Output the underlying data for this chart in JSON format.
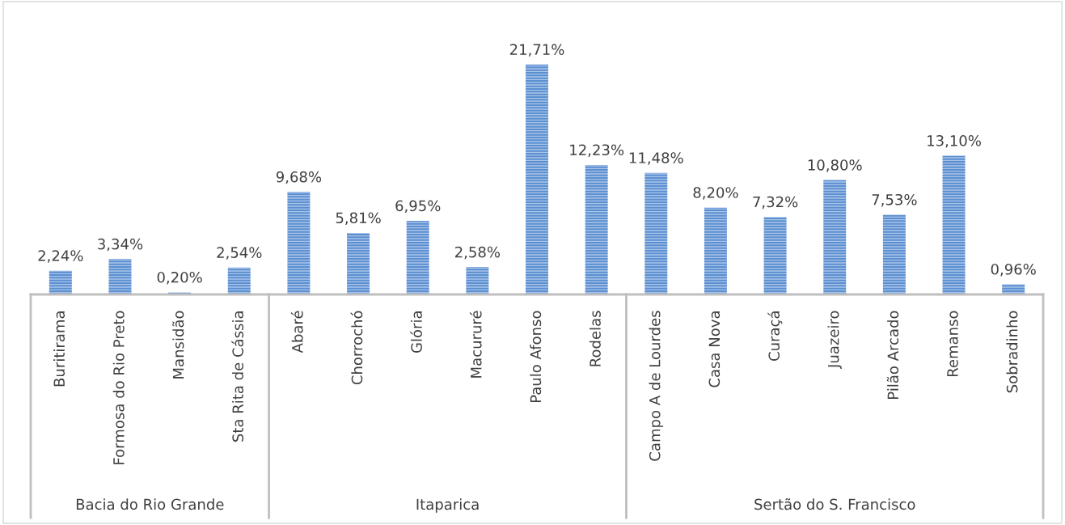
{
  "chart_data": {
    "type": "bar",
    "categories": [
      "Buritirama",
      "Formosa do Rio Preto",
      "Mansidão",
      "Sta Rita de Cássia",
      "Abaré",
      "Chorrochó",
      "Glória",
      "Macururé",
      "Paulo Afonso",
      "Rodelas",
      "Campo A de Lourdes",
      "Casa Nova",
      "Curaçá",
      "Juazeiro",
      "Pilão Arcado",
      "Remanso",
      "Sobradinho"
    ],
    "series": [
      {
        "color": "#5b8fd0",
        "values": [
          2.24,
          3.34,
          0.2,
          2.54,
          null,
          null,
          null,
          null,
          null,
          null,
          null,
          null,
          null,
          null,
          null,
          null,
          null
        ],
        "value_labels": [
          "2,24%",
          "3,34%",
          "0,20%",
          "2,54%",
          null,
          null,
          null,
          null,
          null,
          null,
          null,
          null,
          null,
          null,
          null,
          null,
          null
        ]
      },
      {
        "color": "#5b8fd0",
        "values": [
          null,
          null,
          null,
          null,
          9.68,
          5.81,
          6.95,
          2.58,
          21.71,
          12.23,
          null,
          null,
          null,
          null,
          null,
          null,
          null
        ],
        "value_labels": [
          null,
          null,
          null,
          null,
          "9,68%",
          "5,81%",
          "6,95%",
          "2,58%",
          "21,71%",
          "12,23%",
          null,
          null,
          null,
          null,
          null,
          null,
          null
        ]
      },
      {
        "color": "#5b8fd0",
        "values": [
          null,
          null,
          null,
          null,
          null,
          null,
          null,
          null,
          null,
          null,
          11.48,
          8.2,
          7.32,
          10.8,
          7.53,
          13.1,
          0.96
        ],
        "value_labels": [
          null,
          null,
          null,
          null,
          null,
          null,
          null,
          null,
          null,
          null,
          "11,48%",
          "8,20%",
          "7,32%",
          "10,80%",
          "7,53%",
          "13,10%",
          "0,96%"
        ]
      }
    ],
    "annotations": [
      "Bacia do Rio Grande",
      "Itaparica",
      "Sertão do S. Francisco"
    ]
  }
}
